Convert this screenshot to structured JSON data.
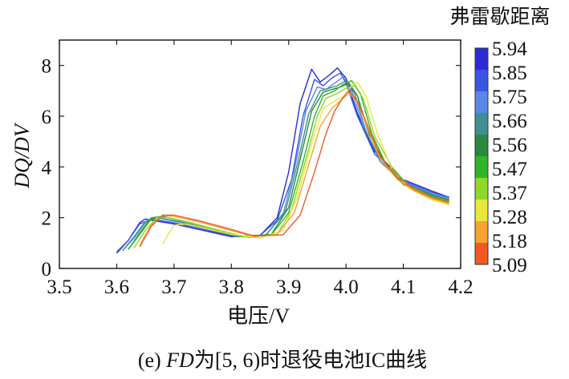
{
  "chart_data": {
    "type": "line",
    "xlabel": "电压/V",
    "ylabel": "DQ/DV",
    "xlim": [
      3.5,
      4.2
    ],
    "ylim": [
      0,
      9
    ],
    "xticks": [
      "3.5",
      "3.6",
      "3.7",
      "3.8",
      "3.9",
      "4.0",
      "4.1",
      "4.2"
    ],
    "yticks": [
      "0",
      "2",
      "4",
      "6",
      "8"
    ],
    "grid": false,
    "colorbar": {
      "title": "弗雷歇距离",
      "ticks": [
        "5.94",
        "5.85",
        "5.75",
        "5.66",
        "5.56",
        "5.47",
        "5.37",
        "5.28",
        "5.18",
        "5.09"
      ],
      "colors": [
        "#2b2bd8",
        "#3a55e0",
        "#5a86e6",
        "#3f8f95",
        "#2a8a3a",
        "#2fb52a",
        "#8fd62a",
        "#e8e83a",
        "#f5a332",
        "#f05a22"
      ]
    },
    "series": [
      {
        "color": "#2b2bd8",
        "x": [
          3.6,
          3.61,
          3.62,
          3.63,
          3.64,
          3.65,
          3.66,
          3.7,
          3.75,
          3.8,
          3.85,
          3.88,
          3.9,
          3.92,
          3.94,
          3.955,
          3.97,
          3.985,
          4.0,
          4.02,
          4.05,
          4.1,
          4.15,
          4.18
        ],
        "y": [
          0.6,
          0.85,
          1.1,
          1.45,
          1.8,
          1.95,
          1.9,
          1.75,
          1.5,
          1.25,
          1.3,
          2.0,
          3.8,
          6.5,
          7.85,
          7.35,
          7.6,
          7.9,
          7.5,
          6.1,
          4.6,
          3.5,
          3.05,
          2.8
        ]
      },
      {
        "color": "#3a55e0",
        "x": [
          3.6,
          3.62,
          3.64,
          3.66,
          3.7,
          3.75,
          3.8,
          3.85,
          3.88,
          3.905,
          3.925,
          3.945,
          3.96,
          3.975,
          3.99,
          4.0,
          4.02,
          4.05,
          4.1,
          4.15,
          4.18
        ],
        "y": [
          0.65,
          1.1,
          1.75,
          1.95,
          1.8,
          1.55,
          1.28,
          1.3,
          1.9,
          3.5,
          6.0,
          7.45,
          7.2,
          7.5,
          7.7,
          7.3,
          6.0,
          4.5,
          3.45,
          3.0,
          2.8
        ]
      },
      {
        "color": "#5a86e6",
        "x": [
          3.61,
          3.63,
          3.65,
          3.67,
          3.71,
          3.76,
          3.81,
          3.86,
          3.89,
          3.91,
          3.93,
          3.95,
          3.965,
          3.98,
          3.995,
          4.01,
          4.03,
          4.06,
          4.1,
          4.15,
          4.18
        ],
        "y": [
          0.7,
          1.25,
          1.85,
          2.0,
          1.82,
          1.55,
          1.27,
          1.32,
          2.1,
          3.9,
          6.2,
          7.15,
          7.05,
          7.3,
          7.55,
          7.0,
          5.6,
          4.3,
          3.4,
          2.95,
          2.75
        ]
      },
      {
        "color": "#3f8f95",
        "x": [
          3.61,
          3.63,
          3.65,
          3.67,
          3.71,
          3.76,
          3.81,
          3.86,
          3.895,
          3.915,
          3.935,
          3.955,
          3.97,
          3.985,
          4.0,
          4.015,
          4.035,
          4.06,
          4.1,
          4.15,
          4.18
        ],
        "y": [
          0.7,
          1.2,
          1.8,
          2.0,
          1.85,
          1.55,
          1.25,
          1.3,
          2.3,
          4.1,
          6.1,
          7.0,
          7.1,
          7.2,
          7.4,
          6.9,
          5.4,
          4.2,
          3.35,
          2.9,
          2.7
        ]
      },
      {
        "color": "#2a8a3a",
        "x": [
          3.62,
          3.64,
          3.66,
          3.68,
          3.72,
          3.77,
          3.82,
          3.87,
          3.9,
          3.92,
          3.94,
          3.96,
          3.975,
          3.99,
          4.005,
          4.02,
          4.04,
          4.07,
          4.1,
          4.15,
          4.18
        ],
        "y": [
          0.75,
          1.35,
          1.95,
          2.05,
          1.85,
          1.55,
          1.25,
          1.35,
          2.4,
          4.3,
          6.2,
          6.95,
          7.05,
          7.15,
          7.3,
          6.8,
          5.3,
          4.1,
          3.35,
          2.9,
          2.7
        ]
      },
      {
        "color": "#2fb52a",
        "x": [
          3.62,
          3.64,
          3.66,
          3.68,
          3.72,
          3.77,
          3.82,
          3.87,
          3.9,
          3.925,
          3.945,
          3.96,
          3.98,
          3.995,
          4.01,
          4.025,
          4.045,
          4.07,
          4.1,
          4.15,
          4.18
        ],
        "y": [
          0.75,
          1.4,
          2.0,
          2.05,
          1.85,
          1.55,
          1.25,
          1.33,
          2.2,
          4.2,
          6.0,
          6.8,
          7.0,
          7.25,
          7.4,
          6.9,
          5.3,
          4.1,
          3.3,
          2.85,
          2.65
        ]
      },
      {
        "color": "#8fd62a",
        "x": [
          3.63,
          3.65,
          3.67,
          3.69,
          3.73,
          3.78,
          3.83,
          3.88,
          3.905,
          3.93,
          3.95,
          3.965,
          3.985,
          4.0,
          4.015,
          4.03,
          4.05,
          4.08,
          4.11,
          4.15,
          4.18
        ],
        "y": [
          0.8,
          1.5,
          2.0,
          2.0,
          1.8,
          1.5,
          1.22,
          1.35,
          2.3,
          4.3,
          6.0,
          6.7,
          6.9,
          7.1,
          7.2,
          6.7,
          5.2,
          4.0,
          3.25,
          2.8,
          2.6
        ]
      },
      {
        "color": "#e8e83a",
        "x": [
          3.68,
          3.69,
          3.7,
          3.72,
          3.75,
          3.8,
          3.85,
          3.89,
          3.915,
          3.94,
          3.96,
          3.98,
          3.995,
          4.01,
          4.02,
          4.035,
          4.055,
          4.08,
          4.11,
          4.15,
          4.18
        ],
        "y": [
          0.95,
          1.35,
          1.7,
          1.75,
          1.6,
          1.35,
          1.2,
          1.5,
          2.8,
          4.9,
          6.3,
          6.6,
          6.75,
          7.2,
          7.35,
          6.8,
          5.3,
          3.9,
          3.15,
          2.7,
          2.5
        ]
      },
      {
        "color": "#f5a332",
        "x": [
          3.64,
          3.66,
          3.68,
          3.7,
          3.74,
          3.79,
          3.84,
          3.88,
          3.91,
          3.935,
          3.955,
          3.975,
          3.99,
          4.005,
          4.02,
          4.04,
          4.06,
          4.09,
          4.12,
          4.15,
          4.18
        ],
        "y": [
          0.9,
          1.7,
          2.1,
          2.05,
          1.85,
          1.55,
          1.25,
          1.35,
          2.2,
          4.1,
          5.6,
          6.3,
          6.6,
          6.9,
          6.6,
          5.4,
          4.3,
          3.5,
          3.05,
          2.75,
          2.55
        ]
      },
      {
        "color": "#f05a22",
        "x": [
          3.64,
          3.66,
          3.68,
          3.7,
          3.74,
          3.79,
          3.84,
          3.89,
          3.92,
          3.945,
          3.965,
          3.98,
          3.995,
          4.005,
          4.02,
          4.04,
          4.06,
          4.09,
          4.12,
          4.15,
          4.18
        ],
        "y": [
          0.85,
          1.65,
          2.1,
          2.1,
          1.9,
          1.6,
          1.28,
          1.32,
          2.1,
          3.8,
          5.3,
          6.2,
          6.75,
          7.0,
          6.6,
          5.5,
          4.4,
          3.6,
          3.1,
          2.8,
          2.6
        ]
      }
    ]
  },
  "caption": {
    "label": "(e) ",
    "fd": "FD",
    "rest": "为[5, 6)时退役电池IC曲线"
  }
}
